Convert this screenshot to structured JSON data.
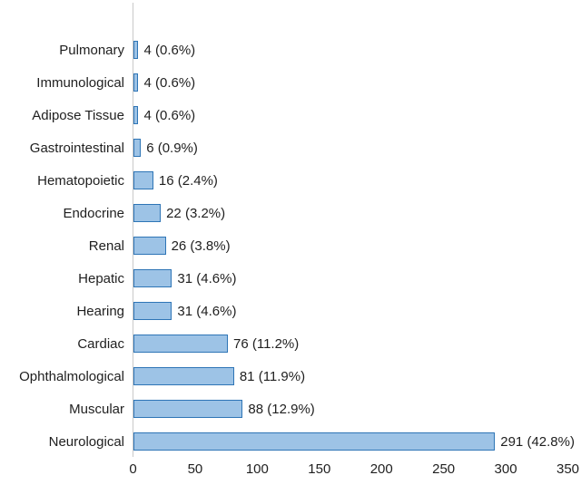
{
  "chart_data": {
    "type": "bar",
    "orientation": "horizontal",
    "title": "",
    "xlabel": "",
    "ylabel": "",
    "categories": [
      "Pulmonary",
      "Immunological",
      "Adipose Tissue",
      "Gastrointestinal",
      "Hematopoietic",
      "Endocrine",
      "Renal",
      "Hepatic",
      "Hearing",
      "Cardiac",
      "Ophthalmological",
      "Muscular",
      "Neurological"
    ],
    "values": [
      4,
      4,
      4,
      6,
      16,
      22,
      26,
      31,
      31,
      76,
      81,
      88,
      291
    ],
    "percentages": [
      0.6,
      0.6,
      0.6,
      0.9,
      2.4,
      3.2,
      3.8,
      4.6,
      4.6,
      11.2,
      11.9,
      12.9,
      42.8
    ],
    "data_labels": [
      "4 (0.6%)",
      "4 (0.6%)",
      "4 (0.6%)",
      "6 (0.9%)",
      "16 (2.4%)",
      "22 (3.2%)",
      "26 (3.8%)",
      "31 (4.6%)",
      "31 (4.6%)",
      "76 (11.2%)",
      "81 (11.9%)",
      "88 (12.9%)",
      "291 (42.8%)"
    ],
    "xlim": [
      0,
      350
    ],
    "x_ticks": [
      "0",
      "50",
      "100",
      "150",
      "200",
      "250",
      "300",
      "350"
    ],
    "x_tick_values": [
      0,
      50,
      100,
      150,
      200,
      250,
      300,
      350
    ],
    "grid": false,
    "legend": false,
    "colors": {
      "bar_fill": "#9DC3E6",
      "bar_border": "#2E75B6",
      "axis_line": "#C9C9C9",
      "label_text": "#1F1F1F"
    }
  }
}
